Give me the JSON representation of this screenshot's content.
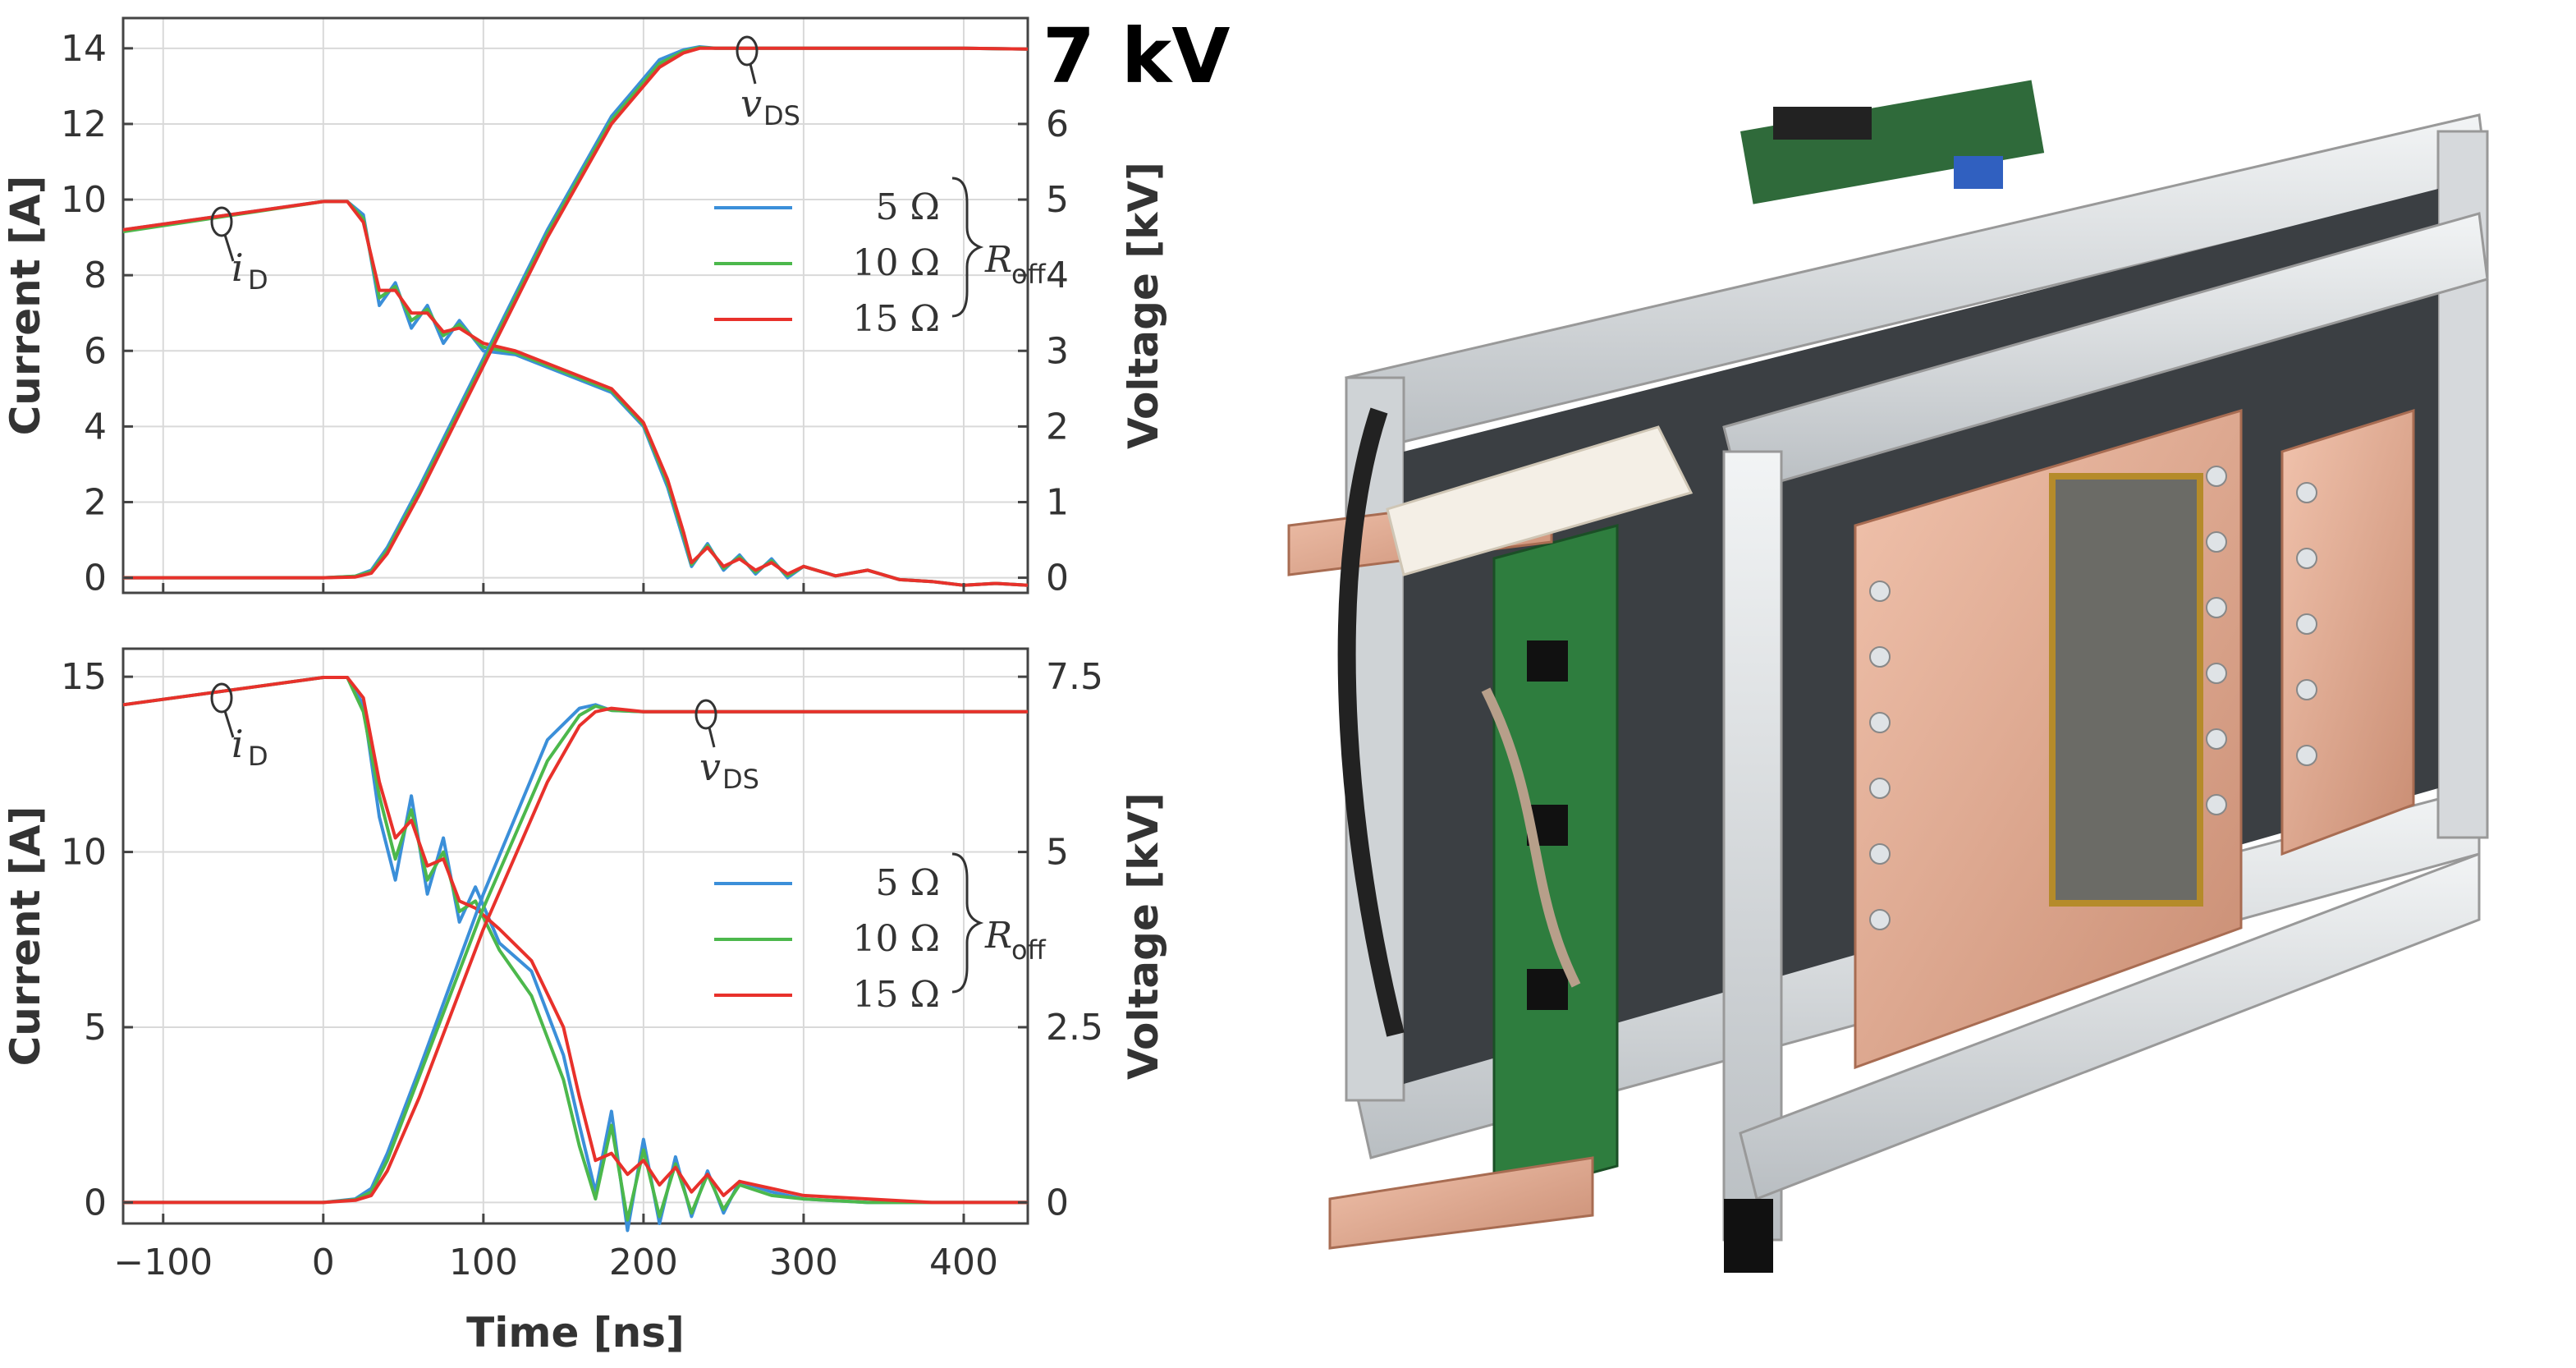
{
  "headline": "7 kV",
  "x_label": "Time [ns]",
  "legend": {
    "entries": [
      "5 Ω",
      "10 Ω",
      "15 Ω"
    ],
    "symbol": "R",
    "symbol_sub": "off"
  },
  "annotations": {
    "current": "i",
    "current_sub": "D",
    "voltage": "v",
    "voltage_sub": "DS"
  },
  "colors": {
    "5": "#3b8fd9",
    "10": "#4cb84c",
    "15": "#e8312b"
  },
  "photo": {
    "description_icon": "converter-hardware-photo"
  },
  "chart_data": [
    {
      "type": "line",
      "title": "",
      "xlabel": "Time [ns]",
      "ylabel": "Current [A]",
      "y2label": "Voltage [kV]",
      "xlim": [
        -125,
        440
      ],
      "ylim": [
        -0.4,
        14.8
      ],
      "y2lim": [
        -0.2,
        7.4
      ],
      "xticks": [
        -100,
        0,
        100,
        200,
        300,
        400
      ],
      "yticks": [
        0,
        2,
        4,
        6,
        8,
        10,
        12,
        14
      ],
      "y2ticks": [
        0,
        1,
        2,
        3,
        4,
        5,
        6
      ],
      "grid": true,
      "legend_position": "center-right",
      "series": [
        {
          "name": "5 Ω",
          "quantity": "iD",
          "x": [
            -125,
            0,
            15,
            25,
            35,
            45,
            55,
            65,
            75,
            85,
            100,
            120,
            150,
            180,
            200,
            215,
            225,
            230,
            240,
            250,
            260,
            270,
            280,
            290,
            300,
            320,
            340,
            360,
            380,
            400,
            420,
            440
          ],
          "values": [
            9.2,
            9.95,
            9.95,
            9.6,
            7.2,
            7.8,
            6.6,
            7.2,
            6.2,
            6.8,
            6.0,
            5.9,
            5.4,
            4.9,
            4.0,
            2.4,
            1.0,
            0.3,
            0.9,
            0.2,
            0.6,
            0.1,
            0.5,
            0.0,
            0.3,
            0.05,
            0.2,
            -0.05,
            -0.1,
            -0.2,
            -0.15,
            -0.2
          ]
        },
        {
          "name": "10 Ω",
          "quantity": "iD",
          "x": [
            -125,
            0,
            15,
            25,
            35,
            45,
            55,
            65,
            75,
            85,
            100,
            120,
            150,
            180,
            200,
            215,
            225,
            230,
            240,
            250,
            260,
            270,
            280,
            290,
            300,
            320,
            340,
            360,
            380,
            400,
            420,
            440
          ],
          "values": [
            9.15,
            9.95,
            9.95,
            9.5,
            7.4,
            7.7,
            6.8,
            7.1,
            6.4,
            6.7,
            6.1,
            5.95,
            5.45,
            4.95,
            4.05,
            2.5,
            1.1,
            0.35,
            0.85,
            0.25,
            0.55,
            0.15,
            0.45,
            0.05,
            0.3,
            0.05,
            0.2,
            -0.05,
            -0.1,
            -0.2,
            -0.15,
            -0.2
          ]
        },
        {
          "name": "15 Ω",
          "quantity": "iD",
          "x": [
            -125,
            0,
            15,
            25,
            35,
            45,
            55,
            65,
            75,
            85,
            100,
            120,
            150,
            180,
            200,
            215,
            225,
            230,
            240,
            250,
            260,
            270,
            280,
            290,
            300,
            320,
            340,
            360,
            380,
            400,
            420,
            440
          ],
          "values": [
            9.2,
            9.95,
            9.95,
            9.4,
            7.6,
            7.6,
            7.0,
            7.0,
            6.5,
            6.6,
            6.2,
            6.0,
            5.5,
            5.0,
            4.1,
            2.6,
            1.2,
            0.4,
            0.8,
            0.3,
            0.5,
            0.2,
            0.4,
            0.1,
            0.3,
            0.05,
            0.2,
            -0.05,
            -0.1,
            -0.2,
            -0.15,
            -0.2
          ]
        },
        {
          "name": "5 Ω",
          "quantity": "vDS",
          "x": [
            -125,
            0,
            20,
            30,
            40,
            60,
            100,
            140,
            180,
            210,
            225,
            235,
            245,
            260,
            300,
            350,
            400,
            440
          ],
          "values": [
            0,
            0,
            0.02,
            0.1,
            0.4,
            1.2,
            2.9,
            4.6,
            6.1,
            6.85,
            6.98,
            7.02,
            7.0,
            7.0,
            7.0,
            7.0,
            7.0,
            6.99
          ]
        },
        {
          "name": "10 Ω",
          "quantity": "vDS",
          "x": [
            -125,
            0,
            20,
            30,
            40,
            60,
            100,
            140,
            180,
            210,
            225,
            235,
            245,
            260,
            300,
            350,
            400,
            440
          ],
          "values": [
            0,
            0,
            0.02,
            0.08,
            0.36,
            1.15,
            2.85,
            4.55,
            6.05,
            6.8,
            6.96,
            7.01,
            7.0,
            7.0,
            7.0,
            7.0,
            7.0,
            6.99
          ]
        },
        {
          "name": "15 Ω",
          "quantity": "vDS",
          "x": [
            -125,
            0,
            20,
            30,
            40,
            60,
            100,
            140,
            180,
            210,
            225,
            235,
            245,
            260,
            300,
            350,
            400,
            440
          ],
          "values": [
            0,
            0,
            0.01,
            0.06,
            0.32,
            1.1,
            2.8,
            4.5,
            6.0,
            6.75,
            6.94,
            7.0,
            7.0,
            7.0,
            7.0,
            7.0,
            7.0,
            6.99
          ]
        }
      ]
    },
    {
      "type": "line",
      "title": "",
      "xlabel": "Time [ns]",
      "ylabel": "Current [A]",
      "y2label": "Voltage [kV]",
      "xlim": [
        -125,
        440
      ],
      "ylim": [
        -0.6,
        15.8
      ],
      "y2lim": [
        -0.3,
        7.9
      ],
      "xticks": [
        -100,
        0,
        100,
        200,
        300,
        400
      ],
      "yticks": [
        0,
        5,
        10,
        15
      ],
      "y2ticks": [
        0,
        2.5,
        5,
        7.5
      ],
      "y2ticklabels": [
        "0",
        "2.5",
        "5",
        "7.5"
      ],
      "grid": true,
      "legend_position": "center-right",
      "series": [
        {
          "name": "5 Ω",
          "quantity": "iD",
          "x": [
            -125,
            0,
            15,
            25,
            35,
            45,
            55,
            65,
            75,
            85,
            95,
            110,
            130,
            150,
            160,
            170,
            180,
            190,
            200,
            210,
            220,
            230,
            240,
            250,
            260,
            280,
            300,
            340,
            380,
            440
          ],
          "values": [
            14.2,
            14.98,
            14.98,
            14.2,
            11.0,
            9.2,
            11.6,
            8.8,
            10.4,
            8.0,
            9.0,
            7.4,
            6.6,
            4.2,
            2.2,
            0.3,
            2.6,
            -0.8,
            1.8,
            -0.6,
            1.3,
            -0.4,
            0.9,
            -0.3,
            0.6,
            0.3,
            0.1,
            0.0,
            0.0,
            0.0
          ]
        },
        {
          "name": "10 Ω",
          "quantity": "iD",
          "x": [
            -125,
            0,
            15,
            25,
            35,
            45,
            55,
            65,
            75,
            85,
            95,
            110,
            130,
            150,
            160,
            170,
            180,
            190,
            200,
            210,
            220,
            230,
            240,
            250,
            260,
            280,
            300,
            340,
            380,
            440
          ],
          "values": [
            14.2,
            14.98,
            14.98,
            14.0,
            11.6,
            9.8,
            11.2,
            9.2,
            10.0,
            8.3,
            8.6,
            7.2,
            5.9,
            3.5,
            1.6,
            0.1,
            2.2,
            -0.5,
            1.5,
            -0.4,
            1.1,
            -0.3,
            0.8,
            -0.2,
            0.5,
            0.2,
            0.1,
            0.0,
            0.0,
            0.0
          ]
        },
        {
          "name": "15 Ω",
          "quantity": "iD",
          "x": [
            -125,
            0,
            15,
            25,
            35,
            45,
            55,
            65,
            75,
            85,
            95,
            110,
            130,
            150,
            160,
            170,
            180,
            190,
            200,
            210,
            220,
            230,
            240,
            250,
            260,
            280,
            300,
            340,
            380,
            440
          ],
          "values": [
            14.2,
            14.98,
            14.98,
            14.4,
            12.0,
            10.4,
            10.9,
            9.6,
            9.8,
            8.6,
            8.4,
            7.8,
            6.9,
            5.0,
            3.0,
            1.2,
            1.4,
            0.8,
            1.2,
            0.5,
            1.0,
            0.3,
            0.8,
            0.2,
            0.6,
            0.4,
            0.2,
            0.1,
            0.0,
            0.0
          ]
        },
        {
          "name": "5 Ω",
          "quantity": "vDS",
          "x": [
            -125,
            0,
            20,
            30,
            40,
            60,
            100,
            140,
            160,
            170,
            180,
            200,
            250,
            300,
            350,
            400,
            440
          ],
          "values": [
            0,
            0,
            0.05,
            0.2,
            0.7,
            1.9,
            4.4,
            6.6,
            7.05,
            7.1,
            7.02,
            7.0,
            7.0,
            7.0,
            7.0,
            7.0,
            7.0
          ]
        },
        {
          "name": "10 Ω",
          "quantity": "vDS",
          "x": [
            -125,
            0,
            20,
            30,
            40,
            60,
            100,
            140,
            160,
            170,
            180,
            200,
            250,
            300,
            350,
            400,
            440
          ],
          "values": [
            0,
            0,
            0.04,
            0.15,
            0.6,
            1.8,
            4.2,
            6.3,
            6.95,
            7.08,
            7.02,
            7.0,
            7.0,
            7.0,
            7.0,
            7.0,
            7.0
          ]
        },
        {
          "name": "15 Ω",
          "quantity": "vDS",
          "x": [
            -125,
            0,
            20,
            30,
            40,
            60,
            100,
            140,
            160,
            170,
            180,
            200,
            250,
            300,
            350,
            400,
            440
          ],
          "values": [
            0,
            0,
            0.03,
            0.1,
            0.45,
            1.5,
            3.9,
            6.0,
            6.8,
            7.0,
            7.05,
            7.0,
            7.0,
            7.0,
            7.0,
            7.0,
            7.0
          ]
        }
      ]
    }
  ]
}
